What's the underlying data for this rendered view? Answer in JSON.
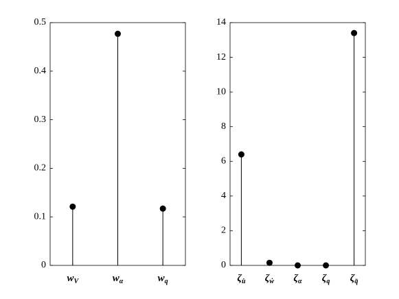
{
  "chart_data": [
    {
      "type": "stem",
      "color": "#000000",
      "categories": [
        {
          "symbol": "w",
          "subscript": "V"
        },
        {
          "symbol": "w",
          "subscript": "α"
        },
        {
          "symbol": "w",
          "subscript": "q"
        }
      ],
      "values": [
        0.121,
        0.477,
        0.117
      ],
      "ylim": [
        0,
        0.5
      ],
      "yticks": [
        0,
        0.1,
        0.2,
        0.3,
        0.4,
        0.5
      ],
      "grid": false
    },
    {
      "type": "stem",
      "color": "#000000",
      "categories": [
        {
          "symbol": "ζ",
          "subscript": "u̇"
        },
        {
          "symbol": "ζ",
          "subscript": "ẇ"
        },
        {
          "symbol": "ζ",
          "subscript": "α"
        },
        {
          "symbol": "ζ",
          "subscript": "q"
        },
        {
          "symbol": "ζ",
          "subscript": "q̄"
        }
      ],
      "values": [
        6.4,
        0.15,
        0,
        0,
        13.4
      ],
      "ylim": [
        0,
        14
      ],
      "yticks": [
        0,
        2,
        4,
        6,
        8,
        10,
        12,
        14
      ],
      "grid": false
    }
  ]
}
